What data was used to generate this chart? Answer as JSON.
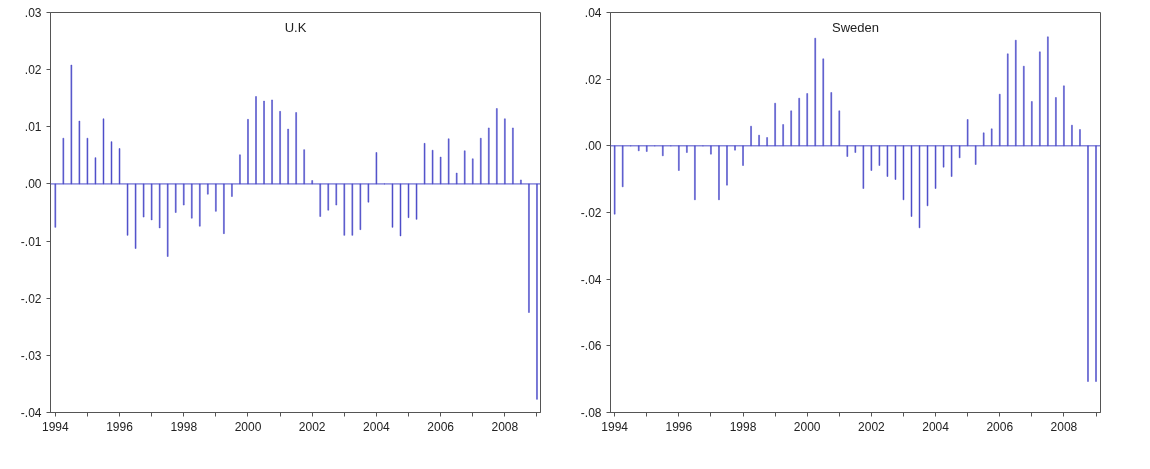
{
  "chart_data": [
    {
      "type": "bar",
      "title": "U.K",
      "x": [
        1994.0,
        1994.25,
        1994.5,
        1994.75,
        1995.0,
        1995.25,
        1995.5,
        1995.75,
        1996.0,
        1996.25,
        1996.5,
        1996.75,
        1997.0,
        1997.25,
        1997.5,
        1997.75,
        1998.0,
        1998.25,
        1998.5,
        1998.75,
        1999.0,
        1999.25,
        1999.5,
        1999.75,
        2000.0,
        2000.25,
        2000.5,
        2000.75,
        2001.0,
        2001.25,
        2001.5,
        2001.75,
        2002.0,
        2002.25,
        2002.5,
        2002.75,
        2003.0,
        2003.25,
        2003.5,
        2003.75,
        2004.0,
        2004.25,
        2004.5,
        2004.75,
        2005.0,
        2005.25,
        2005.5,
        2005.75,
        2006.0,
        2006.25,
        2006.5,
        2006.75,
        2007.0,
        2007.25,
        2007.5,
        2007.75,
        2008.0,
        2008.25,
        2008.5,
        2008.75,
        2009.0
      ],
      "series": [
        {
          "color": "#4b4bc8",
          "values": [
            -0.0076,
            0.008,
            0.0208,
            0.011,
            0.008,
            0.0046,
            0.0114,
            0.0074,
            0.0062,
            -0.009,
            -0.0113,
            -0.0058,
            -0.0063,
            -0.0077,
            -0.0127,
            -0.005,
            -0.0037,
            -0.006,
            -0.0074,
            -0.0018,
            -0.0048,
            -0.0087,
            -0.0022,
            0.0051,
            0.0113,
            0.0153,
            0.0145,
            0.0147,
            0.0127,
            0.0096,
            0.0125,
            0.006,
            0.0006,
            -0.0057,
            -0.0046,
            -0.0037,
            -0.009,
            -0.009,
            -0.008,
            -0.0032,
            0.0055,
            0.0,
            -0.0076,
            -0.0091,
            -0.0059,
            -0.0062,
            0.0071,
            0.0059,
            0.0047,
            0.0079,
            0.0019,
            0.0058,
            0.0044,
            0.008,
            0.0098,
            0.0132,
            0.0114,
            0.0098,
            0.0007,
            -0.0225,
            -0.0377
          ]
        }
      ],
      "xlim": [
        1993.85,
        2009.11
      ],
      "ylim": [
        -0.04,
        0.03
      ],
      "xticks": [
        1994,
        {
          "value": 1995,
          "label": null
        },
        1996,
        {
          "value": 1997,
          "label": null
        },
        1998,
        {
          "value": 1999,
          "label": null
        },
        2000,
        {
          "value": 2001,
          "label": null
        },
        2002,
        {
          "value": 2003,
          "label": null
        },
        2004,
        {
          "value": 2005,
          "label": null
        },
        2006,
        {
          "value": 2007,
          "label": null
        },
        2008,
        {
          "value": 2009,
          "label": null
        }
      ],
      "yticks": [
        {
          "value": -0.04,
          "label": "-.04"
        },
        {
          "value": -0.03,
          "label": "-.03"
        },
        {
          "value": -0.02,
          "label": "-.02"
        },
        {
          "value": -0.01,
          "label": "-.01"
        },
        {
          "value": 0.0,
          "label": ".00"
        },
        {
          "value": 0.01,
          "label": ".01"
        },
        {
          "value": 0.02,
          "label": ".02"
        },
        {
          "value": 0.03,
          "label": ".03"
        }
      ],
      "ref_lines": [
        {
          "axis": "y",
          "value": 0.0,
          "color": "#4b4bc8"
        }
      ],
      "grid": false
    },
    {
      "type": "bar",
      "title": "Sweden",
      "x": [
        1994.0,
        1994.25,
        1994.5,
        1994.75,
        1995.0,
        1995.25,
        1995.5,
        1995.75,
        1996.0,
        1996.25,
        1996.5,
        1996.75,
        1997.0,
        1997.25,
        1997.5,
        1997.75,
        1998.0,
        1998.25,
        1998.5,
        1998.75,
        1999.0,
        1999.25,
        1999.5,
        1999.75,
        2000.0,
        2000.25,
        2000.5,
        2000.75,
        2001.0,
        2001.25,
        2001.5,
        2001.75,
        2002.0,
        2002.25,
        2002.5,
        2002.75,
        2003.0,
        2003.25,
        2003.5,
        2003.75,
        2004.0,
        2004.25,
        2004.5,
        2004.75,
        2005.0,
        2005.25,
        2005.5,
        2005.75,
        2006.0,
        2006.25,
        2006.5,
        2006.75,
        2007.0,
        2007.25,
        2007.5,
        2007.75,
        2008.0,
        2008.25,
        2008.5,
        2008.75,
        2009.0
      ],
      "series": [
        {
          "color": "#4b4bc8",
          "values": [
            -0.0205,
            -0.0123,
            0.0,
            -0.0015,
            -0.0017,
            0.0,
            -0.003,
            0.0,
            -0.0074,
            -0.002,
            -0.0162,
            0.0,
            -0.0025,
            -0.0162,
            -0.0118,
            -0.0013,
            -0.0059,
            0.0059,
            0.0032,
            0.0025,
            0.0128,
            0.0064,
            0.0105,
            0.0143,
            0.0157,
            0.0323,
            0.0261,
            0.016,
            0.0105,
            -0.0032,
            -0.002,
            -0.0128,
            -0.0074,
            -0.0059,
            -0.0092,
            -0.0101,
            -0.0162,
            -0.0212,
            -0.0246,
            -0.018,
            -0.0128,
            -0.0064,
            -0.0092,
            -0.0036,
            0.0079,
            -0.0056,
            0.0039,
            0.0051,
            0.0155,
            0.0276,
            0.0317,
            0.0239,
            0.0133,
            0.0282,
            0.0327,
            0.0145,
            0.018,
            0.0062,
            0.0049,
            -0.0707,
            -0.0707
          ]
        }
      ],
      "xlim": [
        1993.87,
        2009.14
      ],
      "ylim": [
        -0.08,
        0.04
      ],
      "xticks": [
        1994,
        {
          "value": 1995,
          "label": null
        },
        1996,
        {
          "value": 1997,
          "label": null
        },
        1998,
        {
          "value": 1999,
          "label": null
        },
        2000,
        {
          "value": 2001,
          "label": null
        },
        2002,
        {
          "value": 2003,
          "label": null
        },
        2004,
        {
          "value": 2005,
          "label": null
        },
        2006,
        {
          "value": 2007,
          "label": null
        },
        2008,
        {
          "value": 2009,
          "label": null
        }
      ],
      "yticks": [
        {
          "value": -0.08,
          "label": "-.08"
        },
        {
          "value": -0.06,
          "label": "-.06"
        },
        {
          "value": -0.04,
          "label": "-.04"
        },
        {
          "value": -0.02,
          "label": "-.02"
        },
        {
          "value": 0.0,
          "label": ".00"
        },
        {
          "value": 0.02,
          "label": ".02"
        },
        {
          "value": 0.04,
          "label": ".04"
        }
      ],
      "ref_lines": [
        {
          "axis": "y",
          "value": 0.0,
          "color": "#4b4bc8"
        }
      ],
      "grid": false
    }
  ]
}
